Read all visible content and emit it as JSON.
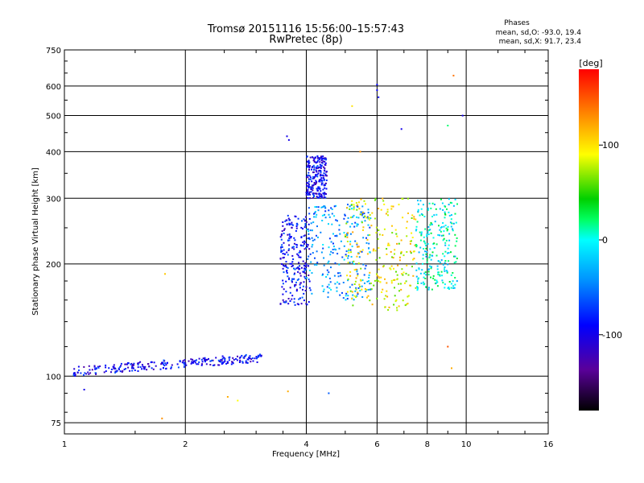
{
  "chart_data": {
    "type": "scatter",
    "title": "Tromsø 20151116 15:56:00–15:57:43",
    "subtitle": "RwPretec (8p)",
    "xlabel": "Frequency [MHz]",
    "ylabel": "Stationary phase Virtual Height [km]",
    "x_scale": "log",
    "y_scale": "log",
    "xlim": [
      1,
      16
    ],
    "ylim": [
      70,
      750
    ],
    "x_ticks": [
      1,
      2,
      4,
      6,
      8,
      10,
      16
    ],
    "y_ticks": [
      75,
      100,
      200,
      300,
      400,
      500,
      600,
      750
    ],
    "grid": true,
    "phases_box": {
      "title": "Phases",
      "line_o": "mean, sd,O: -93.0, 19.4",
      "line_x": "mean, sd,X:  91.7, 23.4"
    },
    "colorbar": {
      "label": "[deg]",
      "range": [
        -180,
        180
      ],
      "ticks": [
        100,
        0,
        -100
      ]
    },
    "clusters": [
      {
        "name": "E-layer trace",
        "x": [
          1.05,
          3.1
        ],
        "y": [
          103,
          112
        ],
        "phase": -95,
        "shape": "band"
      },
      {
        "name": "F1 trace O",
        "x": [
          3.45,
          4.1
        ],
        "y": [
          155,
          270
        ],
        "phase": -90
      },
      {
        "name": "F1 cusp O",
        "x": [
          4.0,
          4.5
        ],
        "y": [
          300,
          390
        ],
        "phase": -95
      },
      {
        "name": "F2 mixed",
        "x": [
          4.0,
          5.8
        ],
        "y": [
          160,
          290
        ],
        "phase": -40
      },
      {
        "name": "F2 spread X",
        "x": [
          5.0,
          7.5
        ],
        "y": [
          150,
          300
        ],
        "phase": 90
      },
      {
        "name": "high freq scatter",
        "x": [
          7.5,
          9.5
        ],
        "y": [
          170,
          300
        ],
        "phase": 0
      }
    ],
    "points": [
      {
        "x": 3.58,
        "y": 440,
        "phase": -100
      },
      {
        "x": 3.62,
        "y": 430,
        "phase": -100
      },
      {
        "x": 6.0,
        "y": 605,
        "phase": -90
      },
      {
        "x": 6.0,
        "y": 585,
        "phase": -95
      },
      {
        "x": 6.05,
        "y": 560,
        "phase": -90
      },
      {
        "x": 9.3,
        "y": 640,
        "phase": 140
      },
      {
        "x": 9.8,
        "y": 500,
        "phase": -100
      },
      {
        "x": 9.0,
        "y": 470,
        "phase": 20
      },
      {
        "x": 5.2,
        "y": 530,
        "phase": 100
      },
      {
        "x": 5.45,
        "y": 400,
        "phase": 130
      },
      {
        "x": 6.9,
        "y": 460,
        "phase": -100
      },
      {
        "x": 1.78,
        "y": 188,
        "phase": 110
      },
      {
        "x": 1.75,
        "y": 77,
        "phase": 130
      },
      {
        "x": 1.12,
        "y": 92,
        "phase": -100
      },
      {
        "x": 2.55,
        "y": 88,
        "phase": 120
      },
      {
        "x": 2.7,
        "y": 86,
        "phase": 90
      },
      {
        "x": 3.6,
        "y": 91,
        "phase": 120
      },
      {
        "x": 4.55,
        "y": 90,
        "phase": -60
      },
      {
        "x": 9.2,
        "y": 105,
        "phase": 120
      },
      {
        "x": 9.0,
        "y": 120,
        "phase": 150
      }
    ]
  }
}
